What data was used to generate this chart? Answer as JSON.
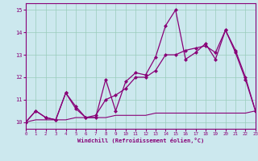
{
  "xlabel": "Windchill (Refroidissement éolien,°C)",
  "background_color": "#cce8ee",
  "grid_color": "#99ccbb",
  "line_color": "#880077",
  "x_min": 0,
  "x_max": 23,
  "y_min": 9.7,
  "y_max": 15.3,
  "yticks": [
    10,
    11,
    12,
    13,
    14,
    15
  ],
  "xticks": [
    0,
    1,
    2,
    3,
    4,
    5,
    6,
    7,
    8,
    9,
    10,
    11,
    12,
    13,
    14,
    15,
    16,
    17,
    18,
    19,
    20,
    21,
    22,
    23
  ],
  "series1": {
    "x": [
      0,
      1,
      2,
      3,
      4,
      5,
      6,
      7,
      8,
      9,
      10,
      11,
      12,
      13,
      14,
      15,
      16,
      17,
      18,
      19,
      20,
      21,
      22,
      23
    ],
    "y": [
      10.0,
      10.5,
      10.2,
      10.1,
      11.3,
      10.6,
      10.2,
      10.2,
      11.9,
      10.5,
      11.8,
      12.2,
      12.1,
      12.9,
      14.3,
      15.0,
      12.8,
      13.1,
      13.5,
      12.8,
      14.1,
      13.1,
      11.9,
      10.5
    ]
  },
  "series2": {
    "x": [
      0,
      1,
      2,
      3,
      4,
      5,
      6,
      7,
      8,
      9,
      10,
      11,
      12,
      13,
      14,
      15,
      16,
      17,
      18,
      19,
      20,
      21,
      22,
      23
    ],
    "y": [
      10.0,
      10.5,
      10.2,
      10.1,
      11.3,
      10.7,
      10.2,
      10.3,
      11.0,
      11.2,
      11.5,
      12.0,
      12.0,
      12.3,
      13.0,
      13.0,
      13.2,
      13.3,
      13.4,
      13.1,
      14.1,
      13.2,
      12.0,
      10.5
    ]
  },
  "series3": {
    "x": [
      0,
      1,
      2,
      3,
      4,
      5,
      6,
      7,
      8,
      9,
      10,
      11,
      12,
      13,
      14,
      15,
      16,
      17,
      18,
      19,
      20,
      21,
      22,
      23
    ],
    "y": [
      10.0,
      10.1,
      10.1,
      10.1,
      10.1,
      10.2,
      10.2,
      10.2,
      10.2,
      10.3,
      10.3,
      10.3,
      10.3,
      10.4,
      10.4,
      10.4,
      10.4,
      10.4,
      10.4,
      10.4,
      10.4,
      10.4,
      10.4,
      10.5
    ]
  }
}
